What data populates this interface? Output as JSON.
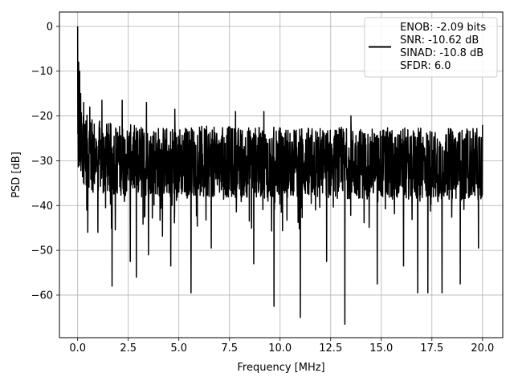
{
  "chart_data": {
    "type": "line",
    "title": "",
    "xlabel": "Frequency [MHz]",
    "ylabel": "PSD [dB]",
    "xlim": [
      -0.9,
      21.0
    ],
    "ylim": [
      -69.5,
      3.2
    ],
    "xticks": [
      0.0,
      2.5,
      5.0,
      7.5,
      10.0,
      12.5,
      15.0,
      17.5,
      20.0
    ],
    "xtick_labels": [
      "0.0",
      "2.5",
      "5.0",
      "7.5",
      "10.0",
      "12.5",
      "15.0",
      "17.5",
      "20.0"
    ],
    "yticks": [
      0,
      -10,
      -20,
      -30,
      -40,
      -50,
      -60
    ],
    "ytick_labels": [
      "0",
      "−10",
      "−20",
      "−30",
      "−40",
      "−50",
      "−60"
    ],
    "grid": true,
    "legend_position": "top-right",
    "legend": {
      "lines": [
        "ENOB: -2.09 bits",
        "SNR: -10.62 dB",
        "SINAD: -10.8 dB",
        "SFDR: 6.0"
      ]
    },
    "series": [
      {
        "color": "#000000",
        "x_range": [
          0.0,
          20.0
        ],
        "description": "noise-like PSD trace; peak 0 dB at 0 MHz, floor roughly -20 to -45 dB with deep nulls",
        "peaks": [
          {
            "x": 0.0,
            "y": 0.0
          },
          {
            "x": 0.05,
            "y": -8.0
          },
          {
            "x": 0.1,
            "y": -10.0
          },
          {
            "x": 0.15,
            "y": -15.0
          },
          {
            "x": 0.3,
            "y": -17.0
          },
          {
            "x": 0.6,
            "y": -18.0
          },
          {
            "x": 1.2,
            "y": -16.5
          },
          {
            "x": 2.2,
            "y": -16.5
          },
          {
            "x": 3.4,
            "y": -17.0
          },
          {
            "x": 4.8,
            "y": -18.5
          },
          {
            "x": 7.8,
            "y": -19.0
          },
          {
            "x": 9.2,
            "y": -19.0
          },
          {
            "x": 13.5,
            "y": -20.0
          },
          {
            "x": 18.0,
            "y": -20.5
          },
          {
            "x": 20.0,
            "y": -22.0
          }
        ],
        "dips": [
          {
            "x": 0.45,
            "y": -41.0
          },
          {
            "x": 0.5,
            "y": -46.0
          },
          {
            "x": 1.0,
            "y": -46.0
          },
          {
            "x": 1.7,
            "y": -58.0
          },
          {
            "x": 2.6,
            "y": -52.5
          },
          {
            "x": 2.9,
            "y": -56.0
          },
          {
            "x": 3.5,
            "y": -51.0
          },
          {
            "x": 4.6,
            "y": -53.5
          },
          {
            "x": 5.6,
            "y": -59.5
          },
          {
            "x": 6.6,
            "y": -49.5
          },
          {
            "x": 8.7,
            "y": -53.0
          },
          {
            "x": 9.7,
            "y": -62.5
          },
          {
            "x": 11.0,
            "y": -65.0
          },
          {
            "x": 12.3,
            "y": -52.5
          },
          {
            "x": 13.2,
            "y": -66.5
          },
          {
            "x": 14.8,
            "y": -57.5
          },
          {
            "x": 16.1,
            "y": -53.5
          },
          {
            "x": 16.8,
            "y": -59.5
          },
          {
            "x": 17.3,
            "y": -59.5
          },
          {
            "x": 18.0,
            "y": -59.5
          },
          {
            "x": 18.9,
            "y": -57.5
          },
          {
            "x": 19.8,
            "y": -49.5
          }
        ]
      }
    ]
  }
}
